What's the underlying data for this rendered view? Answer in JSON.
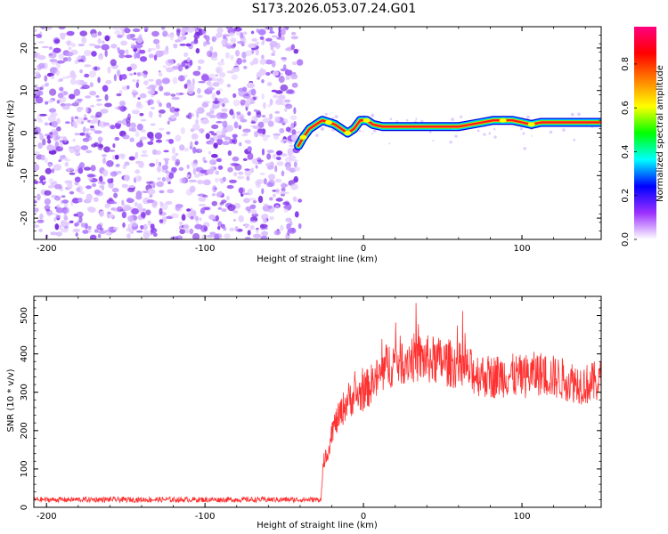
{
  "title": "S173.2026.053.07.24.G01",
  "chart_data": [
    {
      "type": "heatmap",
      "xlabel": "Height of straight line (km)",
      "ylabel": "Frequency (Hz)",
      "xlim": [
        -208,
        150
      ],
      "ylim": [
        -25,
        25
      ],
      "xticks": [
        -200,
        -100,
        0,
        100
      ],
      "xtick_labels": [
        "-200",
        "-100",
        "0",
        "100"
      ],
      "yticks": [
        -20,
        -10,
        0,
        10,
        20
      ],
      "ytick_labels": [
        "-20",
        "-10",
        "0",
        "10",
        "20"
      ],
      "noise_region_x": [
        -208,
        -40
      ],
      "ridge": {
        "x": [
          -41,
          -38,
          -34,
          -30,
          -26,
          -22,
          -18,
          -14,
          -10,
          -6,
          -2,
          2,
          6,
          12,
          20,
          40,
          60,
          75,
          82,
          88,
          94,
          100,
          106,
          112,
          130,
          150
        ],
        "y": [
          -3,
          -1,
          1,
          2,
          3,
          2.5,
          2,
          1,
          0,
          1,
          3,
          3,
          2,
          1.5,
          1.5,
          1.5,
          1.5,
          2.5,
          3,
          3,
          3,
          2.5,
          2,
          2.5,
          2.5,
          2.5
        ]
      },
      "colorbar": {
        "label": "Normalized spectral amplitude",
        "ticks": [
          0.0,
          0.2,
          0.4,
          0.6,
          0.8
        ],
        "tick_labels": [
          "0.0",
          "0.2",
          "0.4",
          "0.6",
          "0.8"
        ],
        "range": [
          0.0,
          0.97
        ],
        "colors": [
          "#ffffff",
          "#9b30ff",
          "#0000ff",
          "#00ffff",
          "#00ff00",
          "#ffff00",
          "#ff8000",
          "#ff0000",
          "#ff0080"
        ]
      }
    },
    {
      "type": "line",
      "xlabel": "Height of straight line (km)",
      "ylabel": "SNR (10 * v/v)",
      "xlim": [
        -208,
        150
      ],
      "ylim": [
        0,
        550
      ],
      "xticks": [
        -200,
        -100,
        0,
        100
      ],
      "xtick_labels": [
        "-200",
        "-100",
        "0",
        "100"
      ],
      "yticks": [
        0,
        100,
        200,
        300,
        400,
        500
      ],
      "ytick_labels": [
        "0",
        "100",
        "200",
        "300",
        "400",
        "500"
      ],
      "color": "#ff3030",
      "envelope": {
        "x": [
          -208,
          -30,
          -27,
          -25,
          -22,
          -20,
          -15,
          -10,
          -5,
          0,
          5,
          10,
          15,
          20,
          30,
          40,
          50,
          60,
          70,
          80,
          90,
          100,
          110,
          120,
          130,
          140,
          150
        ],
        "y": [
          20,
          20,
          20,
          120,
          150,
          200,
          240,
          280,
          290,
          300,
          320,
          340,
          370,
          380,
          390,
          385,
          380,
          370,
          350,
          340,
          345,
          340,
          350,
          340,
          330,
          320,
          330
        ]
      }
    }
  ]
}
